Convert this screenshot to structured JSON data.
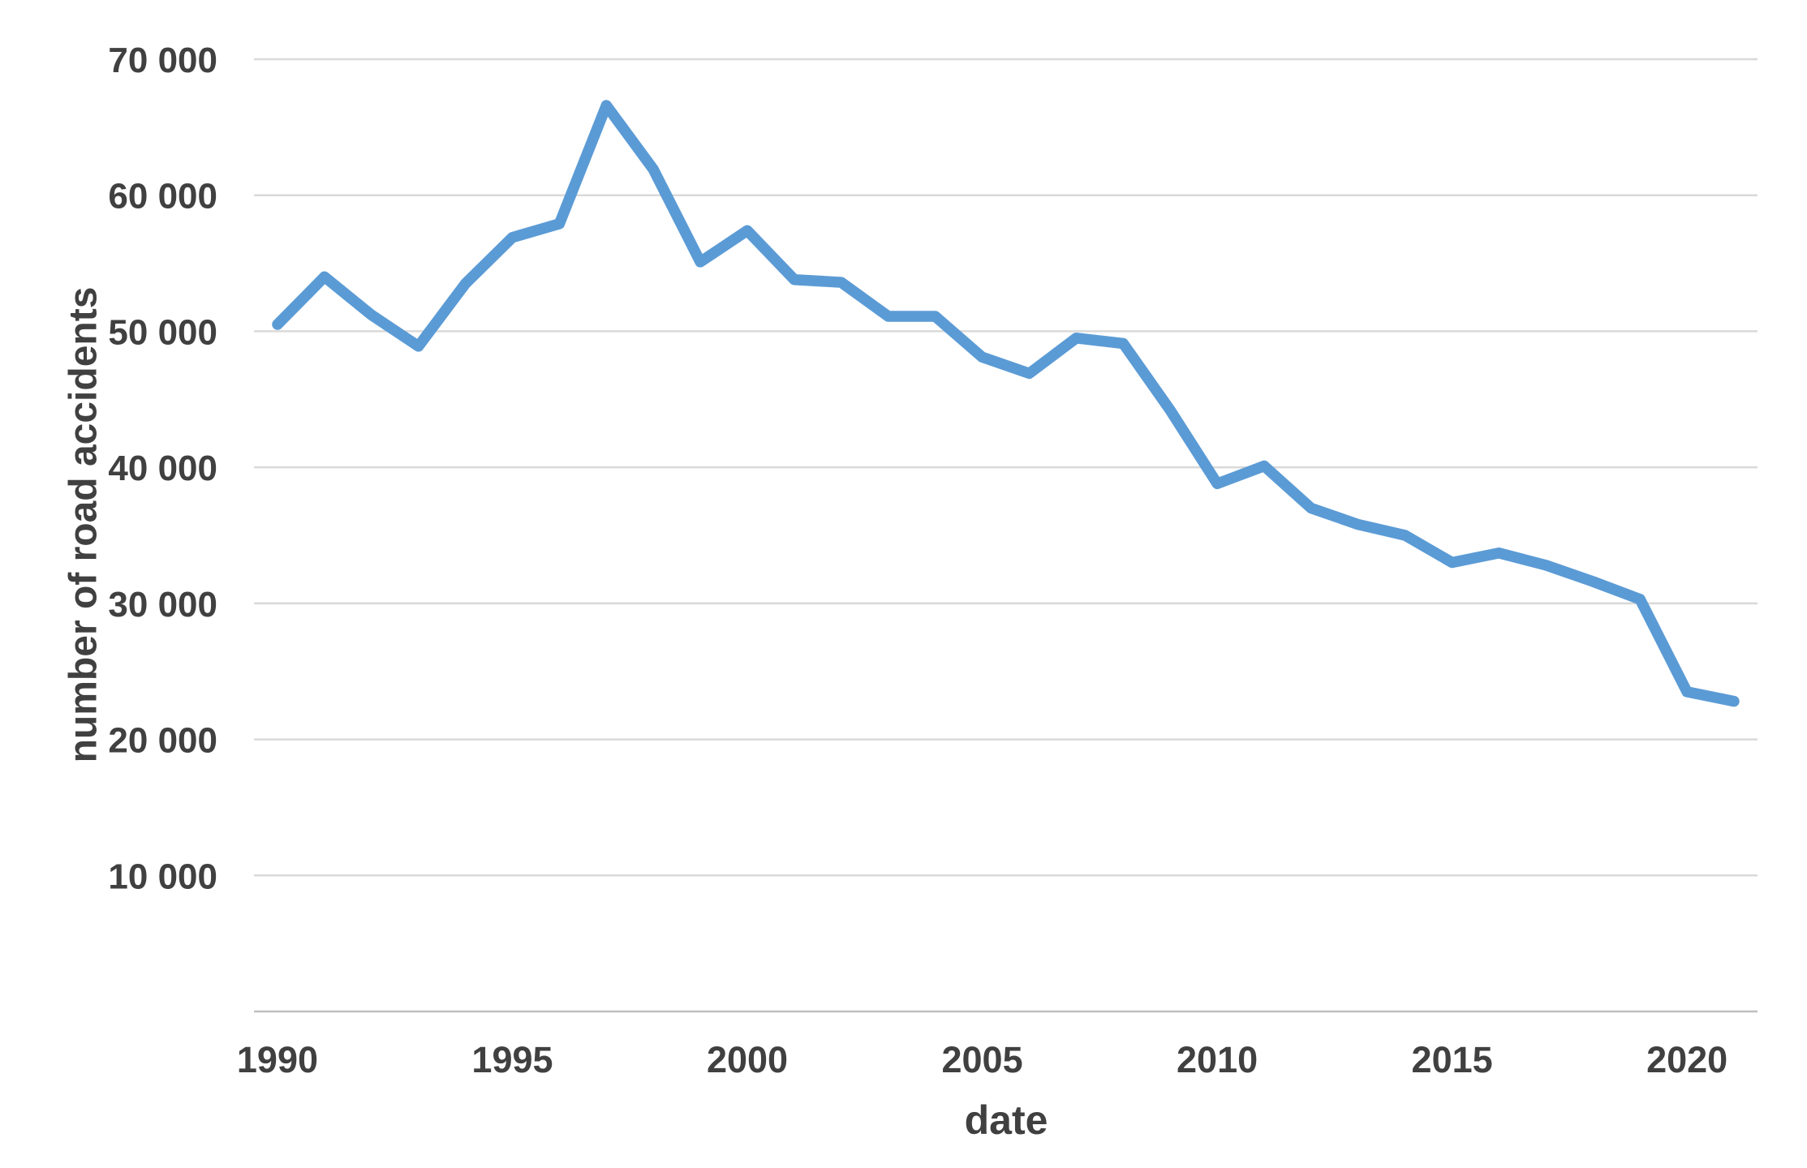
{
  "chart_data": {
    "type": "line",
    "title": "",
    "xlabel": "date",
    "ylabel": "number of road accidents",
    "x": [
      1990,
      1991,
      1992,
      1993,
      1994,
      1995,
      1996,
      1997,
      1998,
      1999,
      2000,
      2001,
      2002,
      2003,
      2004,
      2005,
      2006,
      2007,
      2008,
      2009,
      2010,
      2011,
      2012,
      2013,
      2014,
      2015,
      2016,
      2017,
      2018,
      2019,
      2020,
      2021
    ],
    "values": [
      50500,
      54000,
      51200,
      48900,
      53500,
      56900,
      57900,
      66600,
      61900,
      55100,
      57400,
      53800,
      53600,
      51100,
      51100,
      48100,
      46900,
      49500,
      49100,
      44200,
      38800,
      40100,
      37000,
      35800,
      35000,
      33000,
      33700,
      32800,
      31600,
      30300,
      23500,
      22800
    ],
    "x_tick_labels": [
      "1990",
      "1995",
      "2000",
      "2005",
      "2010",
      "2015",
      "2020"
    ],
    "x_tick_years": [
      1990,
      1995,
      2000,
      2005,
      2010,
      2015,
      2020
    ],
    "y_ticks": [
      {
        "value": 10000,
        "label": "10 000"
      },
      {
        "value": 20000,
        "label": "20 000"
      },
      {
        "value": 30000,
        "label": "30 000"
      },
      {
        "value": 40000,
        "label": "40 000"
      },
      {
        "value": 50000,
        "label": "50 000"
      },
      {
        "value": 60000,
        "label": "60 000"
      },
      {
        "value": 70000,
        "label": "70 000"
      }
    ],
    "ylim": [
      0,
      70000
    ],
    "grid": "horizontal",
    "legend": "none",
    "colors": {
      "line": "#5B9BD5",
      "gridline": "#D9D9D9",
      "axis_line": "#BFBFBF",
      "text": "#404040",
      "background": "#FFFFFF"
    }
  }
}
